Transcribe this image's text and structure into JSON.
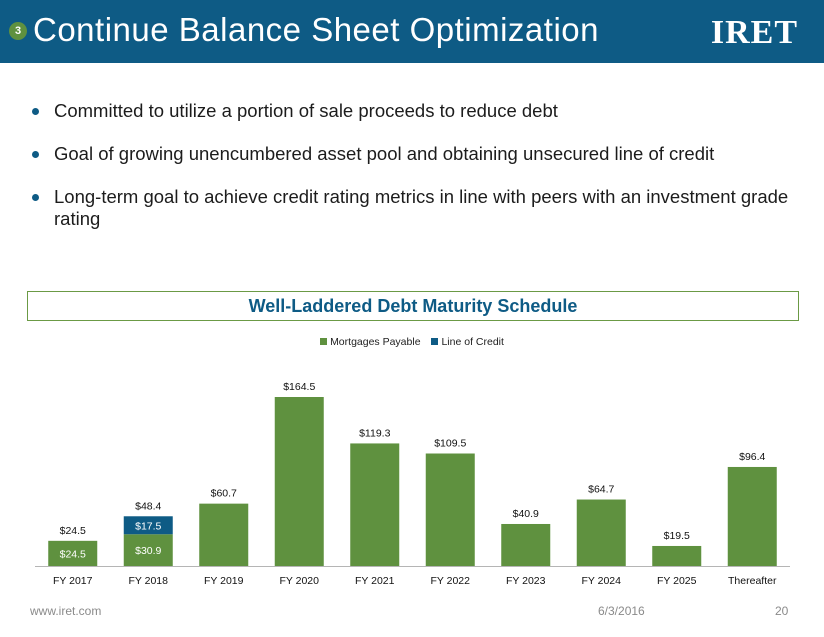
{
  "header": {
    "section_number": "3",
    "title": "Continue Balance Sheet Optimization",
    "logo_text": "IRET"
  },
  "bullets": [
    "Committed to utilize a portion of sale proceeds to reduce debt",
    "Goal of growing unencumbered asset pool and obtaining unsecured line of credit",
    "Long-term goal to achieve credit rating metrics in line with peers with an investment grade rating"
  ],
  "chart_box": {
    "title": "Well-Laddered Debt Maturity Schedule"
  },
  "footer": {
    "url": "www.iret.com",
    "date": "6/3/2016",
    "page": "20"
  },
  "colors": {
    "header": "#0e5b85",
    "mortgages": "#5f913f",
    "line_of_credit": "#0e5b85"
  },
  "chart_data": {
    "type": "bar",
    "stacked": true,
    "title": "Well-Laddered Debt Maturity Schedule",
    "categories": [
      "FY 2017",
      "FY 2018",
      "FY 2019",
      "FY 2020",
      "FY 2021",
      "FY 2022",
      "FY 2023",
      "FY 2024",
      "FY 2025",
      "Thereafter"
    ],
    "series": [
      {
        "name": "Mortgages Payable",
        "values": [
          24.5,
          30.9,
          60.7,
          164.5,
          119.3,
          109.5,
          40.9,
          64.7,
          19.5,
          96.4
        ]
      },
      {
        "name": "Line of Credit",
        "values": [
          0,
          17.5,
          0,
          0,
          0,
          0,
          0,
          0,
          0,
          0
        ]
      }
    ],
    "totals": [
      24.5,
      48.4,
      60.7,
      164.5,
      119.3,
      109.5,
      40.9,
      64.7,
      19.5,
      96.4
    ],
    "total_labels": [
      "$24.5",
      "$48.4",
      "$60.7",
      "$164.5",
      "$119.3",
      "$109.5",
      "$40.9",
      "$64.7",
      "$19.5",
      "$96.4"
    ],
    "segment_labels": [
      {
        "category": "FY 2017",
        "series": "Mortgages Payable",
        "text": "$24.5"
      },
      {
        "category": "FY 2018",
        "series": "Mortgages Payable",
        "text": "$30.9"
      },
      {
        "category": "FY 2018",
        "series": "Line of Credit",
        "text": "$17.5"
      }
    ],
    "legend": "top-center",
    "xlabel": "",
    "ylabel": "",
    "ylim": [
      0,
      170
    ]
  }
}
